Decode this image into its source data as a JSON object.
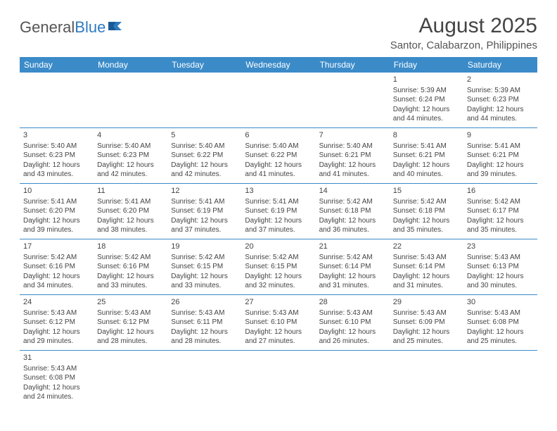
{
  "logo": {
    "text1": "General",
    "text2": "Blue"
  },
  "title": "August 2025",
  "location": "Santor, Calabarzon, Philippines",
  "colors": {
    "header_bg": "#3b8bc9",
    "header_text": "#ffffff",
    "border": "#3b8bc9",
    "text": "#444444",
    "logo_gray": "#555555",
    "logo_blue": "#2f7bbf"
  },
  "weekdays": [
    "Sunday",
    "Monday",
    "Tuesday",
    "Wednesday",
    "Thursday",
    "Friday",
    "Saturday"
  ],
  "weeks": [
    [
      null,
      null,
      null,
      null,
      null,
      {
        "d": "1",
        "sr": "5:39 AM",
        "ss": "6:24 PM",
        "dl": "12 hours and 44 minutes."
      },
      {
        "d": "2",
        "sr": "5:39 AM",
        "ss": "6:23 PM",
        "dl": "12 hours and 44 minutes."
      }
    ],
    [
      {
        "d": "3",
        "sr": "5:40 AM",
        "ss": "6:23 PM",
        "dl": "12 hours and 43 minutes."
      },
      {
        "d": "4",
        "sr": "5:40 AM",
        "ss": "6:23 PM",
        "dl": "12 hours and 42 minutes."
      },
      {
        "d": "5",
        "sr": "5:40 AM",
        "ss": "6:22 PM",
        "dl": "12 hours and 42 minutes."
      },
      {
        "d": "6",
        "sr": "5:40 AM",
        "ss": "6:22 PM",
        "dl": "12 hours and 41 minutes."
      },
      {
        "d": "7",
        "sr": "5:40 AM",
        "ss": "6:21 PM",
        "dl": "12 hours and 41 minutes."
      },
      {
        "d": "8",
        "sr": "5:41 AM",
        "ss": "6:21 PM",
        "dl": "12 hours and 40 minutes."
      },
      {
        "d": "9",
        "sr": "5:41 AM",
        "ss": "6:21 PM",
        "dl": "12 hours and 39 minutes."
      }
    ],
    [
      {
        "d": "10",
        "sr": "5:41 AM",
        "ss": "6:20 PM",
        "dl": "12 hours and 39 minutes."
      },
      {
        "d": "11",
        "sr": "5:41 AM",
        "ss": "6:20 PM",
        "dl": "12 hours and 38 minutes."
      },
      {
        "d": "12",
        "sr": "5:41 AM",
        "ss": "6:19 PM",
        "dl": "12 hours and 37 minutes."
      },
      {
        "d": "13",
        "sr": "5:41 AM",
        "ss": "6:19 PM",
        "dl": "12 hours and 37 minutes."
      },
      {
        "d": "14",
        "sr": "5:42 AM",
        "ss": "6:18 PM",
        "dl": "12 hours and 36 minutes."
      },
      {
        "d": "15",
        "sr": "5:42 AM",
        "ss": "6:18 PM",
        "dl": "12 hours and 35 minutes."
      },
      {
        "d": "16",
        "sr": "5:42 AM",
        "ss": "6:17 PM",
        "dl": "12 hours and 35 minutes."
      }
    ],
    [
      {
        "d": "17",
        "sr": "5:42 AM",
        "ss": "6:16 PM",
        "dl": "12 hours and 34 minutes."
      },
      {
        "d": "18",
        "sr": "5:42 AM",
        "ss": "6:16 PM",
        "dl": "12 hours and 33 minutes."
      },
      {
        "d": "19",
        "sr": "5:42 AM",
        "ss": "6:15 PM",
        "dl": "12 hours and 33 minutes."
      },
      {
        "d": "20",
        "sr": "5:42 AM",
        "ss": "6:15 PM",
        "dl": "12 hours and 32 minutes."
      },
      {
        "d": "21",
        "sr": "5:42 AM",
        "ss": "6:14 PM",
        "dl": "12 hours and 31 minutes."
      },
      {
        "d": "22",
        "sr": "5:43 AM",
        "ss": "6:14 PM",
        "dl": "12 hours and 31 minutes."
      },
      {
        "d": "23",
        "sr": "5:43 AM",
        "ss": "6:13 PM",
        "dl": "12 hours and 30 minutes."
      }
    ],
    [
      {
        "d": "24",
        "sr": "5:43 AM",
        "ss": "6:12 PM",
        "dl": "12 hours and 29 minutes."
      },
      {
        "d": "25",
        "sr": "5:43 AM",
        "ss": "6:12 PM",
        "dl": "12 hours and 28 minutes."
      },
      {
        "d": "26",
        "sr": "5:43 AM",
        "ss": "6:11 PM",
        "dl": "12 hours and 28 minutes."
      },
      {
        "d": "27",
        "sr": "5:43 AM",
        "ss": "6:10 PM",
        "dl": "12 hours and 27 minutes."
      },
      {
        "d": "28",
        "sr": "5:43 AM",
        "ss": "6:10 PM",
        "dl": "12 hours and 26 minutes."
      },
      {
        "d": "29",
        "sr": "5:43 AM",
        "ss": "6:09 PM",
        "dl": "12 hours and 25 minutes."
      },
      {
        "d": "30",
        "sr": "5:43 AM",
        "ss": "6:08 PM",
        "dl": "12 hours and 25 minutes."
      }
    ],
    [
      {
        "d": "31",
        "sr": "5:43 AM",
        "ss": "6:08 PM",
        "dl": "12 hours and 24 minutes."
      },
      null,
      null,
      null,
      null,
      null,
      null
    ]
  ],
  "labels": {
    "sunrise": "Sunrise:",
    "sunset": "Sunset:",
    "daylight": "Daylight:"
  }
}
